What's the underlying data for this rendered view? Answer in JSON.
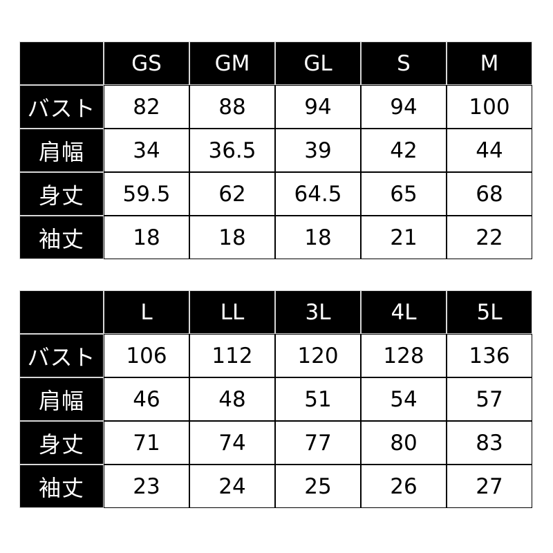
{
  "row_labels": [
    "バスト",
    "肩幅",
    "身丈",
    "袖丈"
  ],
  "tables": [
    {
      "sizes": [
        "GS",
        "GM",
        "GL",
        "S",
        "M"
      ],
      "rows": [
        [
          "82",
          "88",
          "94",
          "94",
          "100"
        ],
        [
          "34",
          "36.5",
          "39",
          "42",
          "44"
        ],
        [
          "59.5",
          "62",
          "64.5",
          "65",
          "68"
        ],
        [
          "18",
          "18",
          "18",
          "21",
          "22"
        ]
      ]
    },
    {
      "sizes": [
        "L",
        "LL",
        "3L",
        "4L",
        "5L"
      ],
      "rows": [
        [
          "106",
          "112",
          "120",
          "128",
          "136"
        ],
        [
          "46",
          "48",
          "51",
          "54",
          "57"
        ],
        [
          "71",
          "74",
          "77",
          "80",
          "83"
        ],
        [
          "23",
          "24",
          "25",
          "26",
          "27"
        ]
      ]
    }
  ]
}
